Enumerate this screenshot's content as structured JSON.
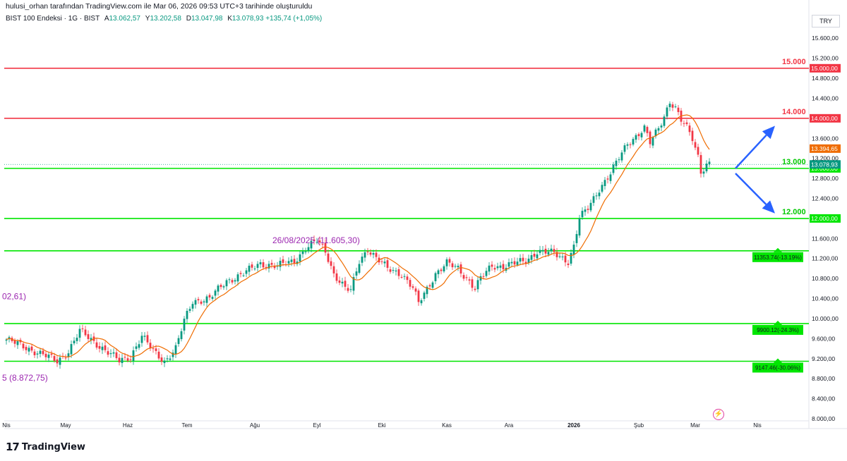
{
  "header": {
    "caption": "hulusi_orhan tarafından TradingView.com ile Mar 06, 2026 09:53 UTC+3 tarihinde oluşturuldu",
    "symbol": "BIST 100 Endeksi · 1G · BIST",
    "ohlc": [
      {
        "label": "A",
        "value": "13.062,57"
      },
      {
        "label": "Y",
        "value": "13.202,58"
      },
      {
        "label": "D",
        "value": "13.047,98"
      },
      {
        "label": "K",
        "value": "13.078,93"
      }
    ],
    "change": "+135,74 (+1,05%)",
    "currency": "TRY"
  },
  "logo": {
    "mark": "17",
    "text": "TradingView"
  },
  "colors": {
    "up": "#089981",
    "down": "#f23645",
    "ma": "#ef6c00",
    "red_line": "#f23645",
    "green_line": "#00e600",
    "annotation": "#9c27b0",
    "arrow": "#2962ff"
  },
  "chart_data": {
    "type": "candlestick",
    "currency": "TRY",
    "ylim": [
      8000,
      15800
    ],
    "y_ticks": [
      {
        "v": 15600,
        "t": "15.600,00"
      },
      {
        "v": 15200,
        "t": "15.200,00"
      },
      {
        "v": 14800,
        "t": "14.800,00"
      },
      {
        "v": 14400,
        "t": "14.400,00"
      },
      {
        "v": 13600,
        "t": "13.600,00"
      },
      {
        "v": 13200,
        "t": "13.200,00"
      },
      {
        "v": 12800,
        "t": "12.800,00"
      },
      {
        "v": 12400,
        "t": "12.400,00"
      },
      {
        "v": 11600,
        "t": "11.600,00"
      },
      {
        "v": 11200,
        "t": "11.200,00"
      },
      {
        "v": 10800,
        "t": "10.800,00"
      },
      {
        "v": 10400,
        "t": "10.400,00"
      },
      {
        "v": 10000,
        "t": "10.000,00"
      },
      {
        "v": 9600,
        "t": "9.600,00"
      },
      {
        "v": 9200,
        "t": "9.200,00"
      },
      {
        "v": 8800,
        "t": "8.800,00"
      },
      {
        "v": 8400,
        "t": "8.400,00"
      },
      {
        "v": 8000,
        "t": "8.000,00"
      }
    ],
    "x_ticks": [
      {
        "i": 0,
        "t": "Nis"
      },
      {
        "i": 21,
        "t": "May"
      },
      {
        "i": 43,
        "t": "Haz"
      },
      {
        "i": 64,
        "t": "Tem"
      },
      {
        "i": 88,
        "t": "Ağu"
      },
      {
        "i": 110,
        "t": "Eyl"
      },
      {
        "i": 133,
        "t": "Eki"
      },
      {
        "i": 156,
        "t": "Kas"
      },
      {
        "i": 178,
        "t": "Ara"
      },
      {
        "i": 201,
        "t": "2026"
      },
      {
        "i": 224,
        "t": "Şub"
      },
      {
        "i": 244,
        "t": "Mar"
      },
      {
        "i": 266,
        "t": "Nis"
      }
    ],
    "candles_visible": 250,
    "horizontal_levels": [
      {
        "value": 15000,
        "color": "red",
        "label": "15.000",
        "price_tag": "15.000,00"
      },
      {
        "value": 14000,
        "color": "red",
        "label": "14.000",
        "price_tag": "14.000,00"
      },
      {
        "value": 13000,
        "color": "green",
        "label": "13.000",
        "price_tag": "13.000,00"
      },
      {
        "value": 12000,
        "color": "green",
        "label": "12.000",
        "price_tag": "12.000,00"
      },
      {
        "value": 11353.74,
        "color": "green",
        "label": "11353.74(-13.19%)"
      },
      {
        "value": 9900.12,
        "color": "green",
        "label": "9900.12(-24.3%)"
      },
      {
        "value": 9147.46,
        "color": "green",
        "label": "9147.46(-30.06%)"
      }
    ],
    "price_tags": [
      {
        "value": 13394.65,
        "text": "13.394,65",
        "kind": "ma"
      },
      {
        "value": 13078.93,
        "text": "13.078,93",
        "kind": "last"
      }
    ],
    "annotations": [
      {
        "text": "26/08/2025 (11.605,30)",
        "price": 11605.3
      },
      {
        "text": "02,61)",
        "price": 10500
      },
      {
        "text": "5 (8.872,75)",
        "price": 8872.75
      }
    ],
    "scenario_arrows": [
      {
        "from_price": 13000,
        "to_price": 13850,
        "direction": "up"
      },
      {
        "from_price": 12900,
        "to_price": 12100,
        "direction": "down"
      }
    ],
    "close_anchors": [
      [
        0,
        9580
      ],
      [
        8,
        9400
      ],
      [
        18,
        9150
      ],
      [
        22,
        9350
      ],
      [
        26,
        9750
      ],
      [
        32,
        9500
      ],
      [
        40,
        9150
      ],
      [
        44,
        9250
      ],
      [
        48,
        9650
      ],
      [
        52,
        9350
      ],
      [
        56,
        9150
      ],
      [
        60,
        9400
      ],
      [
        63,
        9950
      ],
      [
        66,
        10350
      ],
      [
        72,
        10400
      ],
      [
        78,
        10750
      ],
      [
        84,
        10900
      ],
      [
        90,
        11100
      ],
      [
        96,
        11050
      ],
      [
        102,
        11150
      ],
      [
        106,
        11400
      ],
      [
        110,
        11550
      ],
      [
        113,
        11350
      ],
      [
        116,
        10900
      ],
      [
        120,
        10600
      ],
      [
        122,
        10550
      ],
      [
        125,
        11150
      ],
      [
        128,
        11400
      ],
      [
        131,
        11200
      ],
      [
        135,
        11000
      ],
      [
        140,
        10900
      ],
      [
        144,
        10600
      ],
      [
        146,
        10300
      ],
      [
        148,
        10500
      ],
      [
        152,
        10900
      ],
      [
        156,
        11100
      ],
      [
        160,
        11000
      ],
      [
        164,
        10750
      ],
      [
        166,
        10600
      ],
      [
        168,
        10800
      ],
      [
        172,
        11050
      ],
      [
        176,
        11050
      ],
      [
        180,
        11100
      ],
      [
        184,
        11150
      ],
      [
        188,
        11350
      ],
      [
        194,
        11300
      ],
      [
        199,
        11150
      ],
      [
        201,
        11450
      ],
      [
        203,
        12000
      ],
      [
        206,
        12200
      ],
      [
        210,
        12600
      ],
      [
        214,
        12900
      ],
      [
        217,
        13200
      ],
      [
        220,
        13500
      ],
      [
        223,
        13650
      ],
      [
        226,
        13800
      ],
      [
        228,
        13500
      ],
      [
        231,
        13800
      ],
      [
        233,
        14050
      ],
      [
        235,
        14350
      ],
      [
        237,
        14200
      ],
      [
        239,
        13950
      ],
      [
        241,
        13800
      ],
      [
        243,
        13600
      ],
      [
        245,
        13250
      ],
      [
        246,
        12950
      ],
      [
        248,
        13078.93
      ]
    ]
  }
}
